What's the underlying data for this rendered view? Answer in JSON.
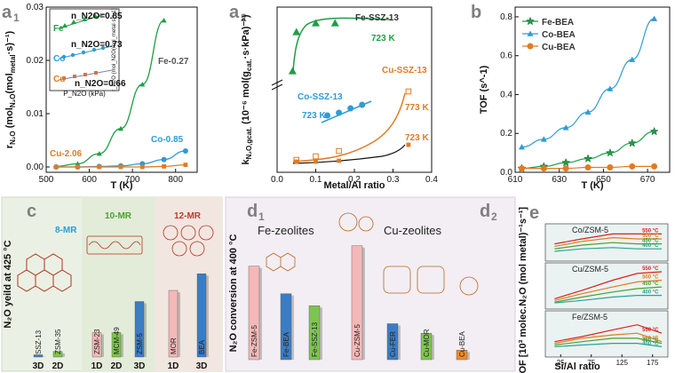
{
  "panels": {
    "a1": {
      "label": "a",
      "sub": "1"
    },
    "a2": {
      "label": "a",
      "sub": "2"
    },
    "b": {
      "label": "b"
    },
    "c": {
      "label": "c"
    },
    "d1": {
      "label": "d",
      "sub": "1"
    },
    "d2": {
      "label": "d",
      "sub": "2"
    },
    "e": {
      "label": "e"
    }
  },
  "colors": {
    "fe": "#1e9e46",
    "co": "#2e9bd6",
    "cu": "#e07b22",
    "red": "#d82020",
    "teal": "#2aa198",
    "cu_sq_fill": "#e07b22",
    "cu_open": "#e07b22",
    "black": "#111111",
    "panel_c_bg": "#eaf1e4",
    "panel_d_bg": "#f2eef3",
    "panel_e_bg": "#eaf3f1"
  },
  "chart_data": [
    {
      "id": "a1",
      "type": "scatter",
      "xlabel": "T (K)",
      "ylabel": "r_N2O (mol_N2O(mol_metal·s)^-1)",
      "xlim": [
        500,
        850
      ],
      "ylim": [
        -0.001,
        0.03
      ],
      "xticks": [
        "500",
        "600",
        "700",
        "800"
      ],
      "yticks": [
        "0.00",
        "0.01",
        "0.02",
        "0.03"
      ],
      "series": [
        {
          "name": "Fe",
          "label": "Fe-0.27",
          "marker": "triangle",
          "x": [
            523,
            573,
            623,
            673,
            723,
            773
          ],
          "y": [
            0.0001,
            0.0006,
            0.0025,
            0.0072,
            0.0155,
            0.0275
          ]
        },
        {
          "name": "Co",
          "label": "Co-0.85",
          "marker": "circle",
          "x": [
            523,
            573,
            623,
            673,
            723,
            773,
            823
          ],
          "y": [
            0.0,
            0.0,
            0.0001,
            0.0002,
            0.0006,
            0.0014,
            0.003
          ]
        },
        {
          "name": "Cu",
          "label": "Cu-2.06",
          "marker": "square",
          "x": [
            523,
            573,
            623,
            673,
            723,
            773,
            823
          ],
          "y": [
            0.0,
            0.0,
            0.0,
            0.0,
            0.0,
            0.0001,
            0.0004
          ]
        }
      ],
      "inset": {
        "xlabel": "P_N2O (kPa)",
        "ylabel": "r_N2O (mol_N2O(mol_metal·s)^-1)",
        "series": [
          {
            "name": "Fe",
            "order": "n_N2O=0.85"
          },
          {
            "name": "Co",
            "order": "n_N2O=0.73"
          },
          {
            "name": "Cu",
            "order": "n_N2O=0.66"
          }
        ]
      }
    },
    {
      "id": "a2",
      "type": "scatter",
      "xlabel": "Metal/Al ratio",
      "ylabel": "k_N2O,gcat. (10^-6 mol(g_cat.·s·kPa)^-1)",
      "xlim": [
        0.0,
        0.4
      ],
      "xticks": [
        "0.0",
        "0.1",
        "0.2",
        "0.3",
        "0.4"
      ],
      "series": [
        {
          "name": "Fe-SSZ-13",
          "temp": "723 K",
          "marker": "triangle",
          "x": [
            0.04,
            0.05,
            0.1,
            0.15
          ],
          "y_level": "top"
        },
        {
          "name": "Co-SSZ-13",
          "temp": "723 K",
          "marker": "circle",
          "x": [
            0.13,
            0.16,
            0.19,
            0.22
          ],
          "y_level": "middle"
        },
        {
          "name": "Cu-SSZ-13",
          "temp_open": "773 K",
          "temp_filled": "723 K",
          "marker": "square",
          "x": [
            0.05,
            0.1,
            0.16,
            0.34
          ],
          "y_level": "bottom"
        }
      ]
    },
    {
      "id": "b",
      "type": "scatter",
      "xlabel": "T (K)",
      "ylabel": "TOF (s^-1)",
      "xlim": [
        610,
        680
      ],
      "ylim": [
        0.0,
        0.85
      ],
      "xticks": [
        "610",
        "630",
        "650",
        "670"
      ],
      "yticks": [
        "0.0",
        "0.2",
        "0.4",
        "0.6",
        "0.8"
      ],
      "series": [
        {
          "name": "Fe-BEA",
          "marker": "star",
          "x": [
            613,
            623,
            633,
            643,
            653,
            663,
            673
          ],
          "y": [
            0.02,
            0.03,
            0.05,
            0.07,
            0.1,
            0.15,
            0.21
          ]
        },
        {
          "name": "Co-BEA",
          "marker": "triangle",
          "x": [
            613,
            623,
            633,
            643,
            653,
            663,
            673
          ],
          "y": [
            0.13,
            0.17,
            0.23,
            0.31,
            0.43,
            0.58,
            0.79
          ]
        },
        {
          "name": "Cu-BEA",
          "marker": "circle",
          "x": [
            613,
            623,
            633,
            643,
            653,
            663,
            673
          ],
          "y": [
            0.02,
            0.02,
            0.02,
            0.025,
            0.025,
            0.03,
            0.03
          ]
        }
      ]
    },
    {
      "id": "c",
      "type": "bar",
      "ylabel": "N₂O yeild at 425 °C",
      "groups": [
        "8-MR",
        "10-MR",
        "12-MR"
      ],
      "categories": [
        "SSZ-13",
        "ZSM-35",
        "ZSM-23",
        "MCM-49",
        "ZSM-5",
        "MOR",
        "BEA"
      ],
      "dims": [
        "3D",
        "2D",
        "1D",
        "2D",
        "3D",
        "1D",
        "3D"
      ],
      "values": [
        2,
        5,
        22,
        22,
        50,
        60,
        75
      ],
      "bar_colors": [
        "#3b7dc4",
        "#7ec450",
        "#f4b8b8",
        "#7ec450",
        "#3b7dc4",
        "#f4b8b8",
        "#3b7dc4"
      ]
    },
    {
      "id": "d",
      "type": "bar",
      "ylabel": "N₂O conversion at 400 °C",
      "group_titles": [
        "Fe-zeolites",
        "Cu-zeolites"
      ],
      "categories": [
        "Fe-ZSM-5",
        "Fe-BEA",
        "Fe-SSZ-13",
        "Cu-ZSM-5",
        "Cu-FER",
        "Cu-MOR",
        "Cu-BEA"
      ],
      "values": [
        78,
        55,
        45,
        95,
        30,
        22,
        8
      ],
      "bar_colors": [
        "#f4b8b8",
        "#3b7dc4",
        "#7ec450",
        "#f4b8b8",
        "#3b7dc4",
        "#7ec450",
        "#f08a2a"
      ]
    },
    {
      "id": "e",
      "type": "line",
      "ylabel": "TOF [10³ molec.N₂O (mol metal)⁻¹s⁻¹]",
      "xlabel": "Si/Al ratio",
      "xticks": [
        "25",
        "75",
        "125",
        "175"
      ],
      "subplots": [
        {
          "title": "Co/ZSM-5",
          "series": [
            {
              "temp": "550 °C",
              "color": "#d82020",
              "x": [
                15,
                60,
                110,
                150,
                190
              ],
              "y": [
                0.55,
                0.75,
                0.95,
                0.95,
                0.95
              ]
            },
            {
              "temp": "500 °C",
              "color": "#e07b22",
              "x": [
                15,
                60,
                110,
                150,
                190
              ],
              "y": [
                0.45,
                0.65,
                0.8,
                0.75,
                0.75
              ]
            },
            {
              "temp": "450 °C",
              "color": "#4aa030",
              "x": [
                15,
                60,
                110,
                150,
                190
              ],
              "y": [
                0.35,
                0.5,
                0.6,
                0.55,
                0.55
              ]
            },
            {
              "temp": "400 °C",
              "color": "#2aa198",
              "x": [
                15,
                60,
                110,
                150,
                190
              ],
              "y": [
                0.25,
                0.35,
                0.4,
                0.35,
                0.35
              ]
            }
          ]
        },
        {
          "title": "Cu/ZSM-5",
          "series": [
            {
              "temp": "550 °C",
              "color": "#d82020",
              "x": [
                15,
                60,
                110,
                150,
                190
              ],
              "y": [
                0.2,
                0.45,
                0.75,
                0.95,
                1.0
              ]
            },
            {
              "temp": "500 °C",
              "color": "#e07b22",
              "x": [
                15,
                60,
                110,
                150,
                190
              ],
              "y": [
                0.15,
                0.35,
                0.55,
                0.7,
                0.75
              ]
            },
            {
              "temp": "450 °C",
              "color": "#4aa030",
              "x": [
                15,
                60,
                110,
                150,
                190
              ],
              "y": [
                0.1,
                0.25,
                0.4,
                0.5,
                0.55
              ]
            },
            {
              "temp": "400 °C",
              "color": "#2aa198",
              "x": [
                15,
                60,
                110,
                150,
                190
              ],
              "y": [
                0.08,
                0.15,
                0.25,
                0.3,
                0.3
              ]
            }
          ]
        },
        {
          "title": "Fe/ZSM-5",
          "series": [
            {
              "temp": "550 °C",
              "color": "#d82020",
              "x": [
                15,
                60,
                110,
                150,
                190
              ],
              "y": [
                0.35,
                0.5,
                0.7,
                0.85,
                0.6
              ]
            },
            {
              "temp": "500 °C",
              "color": "#e07b22",
              "x": [
                15,
                60,
                110,
                150,
                190
              ],
              "y": [
                0.3,
                0.45,
                0.55,
                0.6,
                0.35
              ]
            },
            {
              "temp": "450 °C",
              "color": "#4aa030",
              "x": [
                15,
                60,
                110,
                150,
                190
              ],
              "y": [
                0.25,
                0.35,
                0.45,
                0.45,
                0.3
              ]
            },
            {
              "temp": "400 °C",
              "color": "#2aa198",
              "x": [
                15,
                60,
                110,
                150,
                190
              ],
              "y": [
                0.2,
                0.25,
                0.3,
                0.3,
                0.2
              ]
            }
          ]
        }
      ]
    }
  ]
}
